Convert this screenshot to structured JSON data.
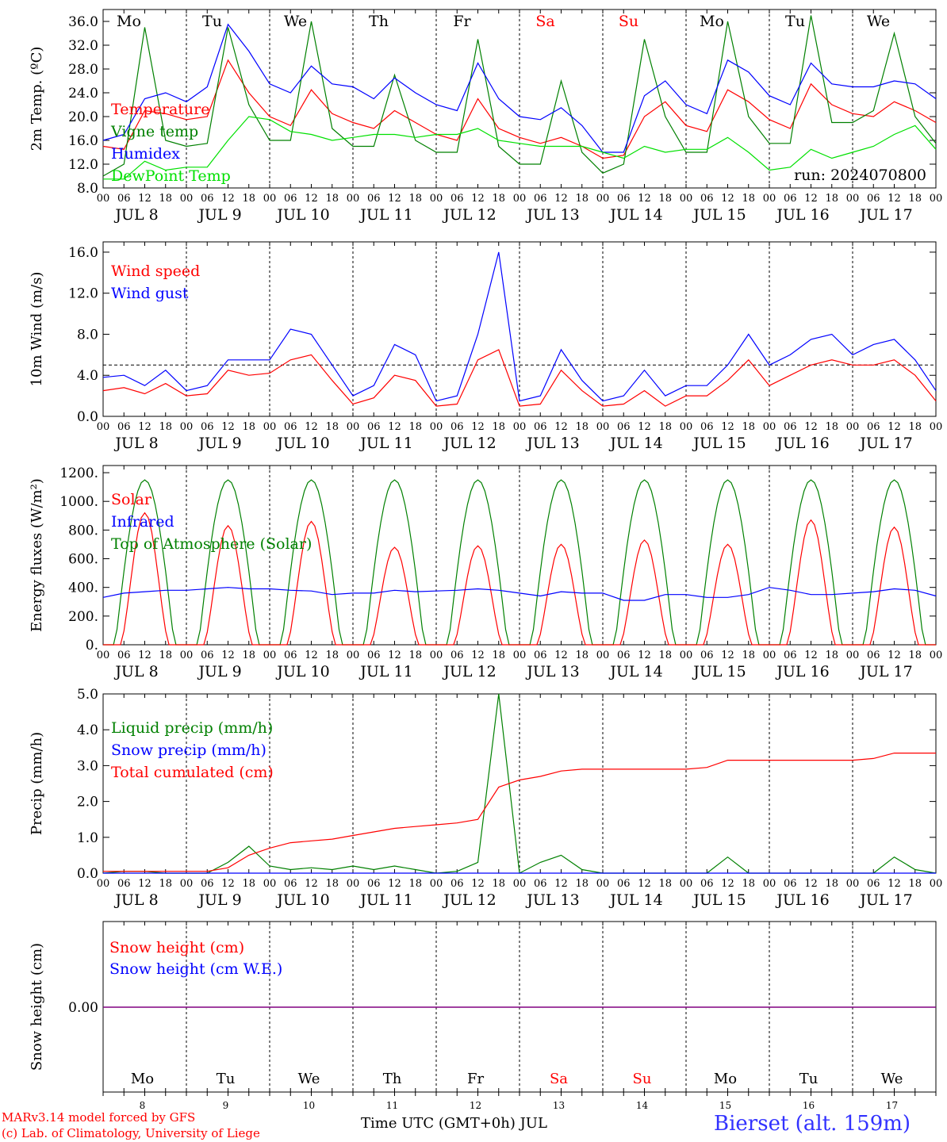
{
  "chart_data": [
    {
      "id": "temp",
      "type": "line",
      "ylabel": "2m Temp. (ºC)",
      "ylim": [
        8,
        38
      ],
      "yticks": [
        "8.0",
        "12.0",
        "16.0",
        "20.0",
        "24.0",
        "28.0",
        "32.0",
        "36.0"
      ],
      "ytick_values": [
        8,
        12,
        16,
        20,
        24,
        28,
        32,
        36
      ],
      "weekday_labels": [
        "Mo",
        "Tu",
        "We",
        "Th",
        "Fr",
        "Sa",
        "Su",
        "Mo",
        "Tu",
        "We"
      ],
      "weekend_color": "#ff0000",
      "run_label": "run: 2024070800",
      "x": [
        0,
        6,
        12,
        18,
        24,
        30,
        36,
        42,
        48,
        54,
        60,
        66,
        72,
        78,
        84,
        90,
        96,
        102,
        108,
        114,
        120,
        126,
        132,
        138,
        144,
        150,
        156,
        162,
        168,
        174,
        180,
        186,
        192,
        198,
        204,
        210,
        216,
        222,
        228,
        234,
        240
      ],
      "series": [
        {
          "name": "Temperature",
          "color": "#ff0000",
          "values": [
            15.0,
            14.5,
            21.0,
            20.5,
            19.5,
            20.0,
            29.5,
            24.0,
            20.0,
            18.5,
            24.5,
            20.5,
            19.0,
            18.0,
            21.0,
            19.0,
            17.0,
            16.0,
            23.0,
            18.0,
            16.5,
            15.5,
            16.5,
            15.0,
            13.0,
            13.5,
            20.0,
            22.5,
            18.5,
            17.5,
            24.5,
            22.5,
            19.5,
            18.0,
            25.5,
            22.0,
            20.5,
            20.0,
            22.5,
            21.0,
            19.0
          ]
        },
        {
          "name": "Vigne temp",
          "color": "#008000",
          "values": [
            10.0,
            12.0,
            35.0,
            16.0,
            15.0,
            15.5,
            35.0,
            22.0,
            16.0,
            16.0,
            36.0,
            18.0,
            15.0,
            15.0,
            27.0,
            16.0,
            14.0,
            14.0,
            33.0,
            15.0,
            12.0,
            12.0,
            26.0,
            14.0,
            10.5,
            12.0,
            33.0,
            20.0,
            14.0,
            14.0,
            36.0,
            20.0,
            15.5,
            15.5,
            37.0,
            19.0,
            19.0,
            21.0,
            34.0,
            20.0,
            15.5
          ]
        },
        {
          "name": "Humidex",
          "color": "#0000ff",
          "values": [
            16.0,
            17.0,
            23.0,
            24.0,
            22.5,
            25.0,
            35.5,
            31.0,
            25.5,
            24.0,
            28.5,
            25.5,
            25.0,
            23.0,
            26.5,
            24.0,
            22.0,
            21.0,
            29.0,
            23.0,
            20.0,
            19.5,
            21.5,
            18.5,
            14.0,
            14.0,
            23.5,
            26.0,
            22.0,
            20.5,
            29.5,
            27.5,
            23.5,
            22.0,
            29.0,
            25.5,
            25.0,
            25.0,
            26.0,
            25.5,
            23.0
          ]
        },
        {
          "name": "DewPoint Temp",
          "color": "#00e000",
          "values": [
            9.5,
            9.5,
            12.5,
            11.0,
            11.5,
            11.5,
            16.0,
            20.0,
            19.5,
            17.5,
            17.0,
            16.0,
            16.5,
            17.0,
            17.0,
            16.5,
            17.0,
            17.0,
            18.0,
            16.0,
            15.5,
            15.0,
            15.0,
            15.0,
            14.0,
            13.0,
            15.0,
            14.0,
            14.5,
            14.5,
            16.5,
            14.0,
            11.0,
            11.5,
            14.5,
            13.0,
            14.0,
            15.0,
            17.0,
            18.5,
            14.5
          ]
        }
      ]
    },
    {
      "id": "wind",
      "type": "line",
      "ylabel": "10m Wind (m/s)",
      "ylim": [
        0,
        17
      ],
      "yticks": [
        "0.0",
        "4.0",
        "8.0",
        "12.0",
        "16.0"
      ],
      "ytick_values": [
        0,
        4,
        8,
        12,
        16
      ],
      "reference_line": 5,
      "x": [
        0,
        6,
        12,
        18,
        24,
        30,
        36,
        42,
        48,
        54,
        60,
        66,
        72,
        78,
        84,
        90,
        96,
        102,
        108,
        114,
        120,
        126,
        132,
        138,
        144,
        150,
        156,
        162,
        168,
        174,
        180,
        186,
        192,
        198,
        204,
        210,
        216,
        222,
        228,
        234,
        240
      ],
      "series": [
        {
          "name": "Wind speed",
          "color": "#ff0000",
          "values": [
            2.5,
            2.8,
            2.2,
            3.2,
            2.0,
            2.2,
            4.5,
            4.0,
            4.2,
            5.5,
            6.0,
            3.5,
            1.2,
            1.8,
            4.0,
            3.5,
            1.0,
            1.2,
            5.5,
            6.5,
            1.0,
            1.2,
            4.5,
            2.5,
            1.0,
            1.2,
            2.5,
            1.0,
            2.0,
            2.0,
            3.5,
            5.5,
            3.0,
            4.0,
            5.0,
            5.5,
            5.0,
            5.0,
            5.5,
            4.0,
            1.5
          ]
        },
        {
          "name": "Wind gust",
          "color": "#0000ff",
          "values": [
            3.8,
            4.0,
            3.0,
            4.5,
            2.5,
            3.0,
            5.5,
            5.5,
            5.5,
            8.5,
            8.0,
            5.0,
            2.0,
            3.0,
            7.0,
            6.0,
            1.5,
            2.0,
            8.0,
            16.0,
            1.5,
            2.0,
            6.5,
            3.5,
            1.5,
            2.0,
            4.5,
            2.0,
            3.0,
            3.0,
            5.0,
            8.0,
            5.0,
            6.0,
            7.5,
            8.0,
            6.0,
            7.0,
            7.5,
            5.5,
            2.5
          ]
        }
      ]
    },
    {
      "id": "energy",
      "type": "line",
      "ylabel": "Energy fluxes (W/m²)",
      "ylim": [
        0,
        1250
      ],
      "yticks": [
        "0.",
        "200.",
        "400.",
        "600.",
        "800.",
        "1000.",
        "1200."
      ],
      "ytick_values": [
        0,
        200,
        400,
        600,
        800,
        1000,
        1200
      ],
      "solar_peaks": [
        920,
        830,
        860,
        680,
        690,
        700,
        730,
        700,
        870,
        820
      ],
      "toa_peak": 1150,
      "infrared_values": [
        330,
        360,
        370,
        380,
        380,
        390,
        400,
        390,
        390,
        380,
        375,
        350,
        360,
        360,
        380,
        370,
        375,
        380,
        390,
        380,
        360,
        340,
        370,
        360,
        360,
        310,
        310,
        350,
        350,
        330,
        330,
        350,
        400,
        380,
        350,
        350,
        360,
        370,
        390,
        380,
        340
      ],
      "series": [
        {
          "name": "Solar",
          "color": "#ff0000"
        },
        {
          "name": "Infrared",
          "color": "#0000ff"
        },
        {
          "name": "Top of Atmosphere (Solar)",
          "color": "#008000"
        }
      ]
    },
    {
      "id": "precip",
      "type": "line",
      "ylabel": "Precip (mm/h)",
      "ylim": [
        0,
        5
      ],
      "yticks": [
        "0.0",
        "1.0",
        "2.0",
        "3.0",
        "4.0",
        "5.0"
      ],
      "ytick_values": [
        0,
        1,
        2,
        3,
        4,
        5
      ],
      "x": [
        0,
        6,
        12,
        18,
        24,
        30,
        36,
        42,
        48,
        54,
        60,
        66,
        72,
        78,
        84,
        90,
        96,
        102,
        108,
        114,
        120,
        126,
        132,
        138,
        144,
        150,
        156,
        162,
        168,
        174,
        180,
        186,
        192,
        198,
        204,
        210,
        216,
        222,
        228,
        234,
        240
      ],
      "series": [
        {
          "name": "Liquid precip (mm/h)",
          "color": "#008000",
          "values": [
            0.0,
            0.05,
            0.05,
            0.0,
            0.0,
            0.0,
            0.3,
            0.75,
            0.2,
            0.1,
            0.15,
            0.1,
            0.2,
            0.1,
            0.2,
            0.1,
            0.0,
            0.05,
            0.3,
            5.0,
            0.0,
            0.3,
            0.5,
            0.1,
            0.0,
            0.0,
            0.0,
            0.0,
            0.0,
            0.0,
            0.45,
            0.0,
            0.0,
            0.0,
            0.0,
            0.0,
            0.0,
            0.0,
            0.45,
            0.1,
            0.0
          ]
        },
        {
          "name": "Snow precip (mm/h)",
          "color": "#0000ff",
          "values": [
            0,
            0,
            0,
            0,
            0,
            0,
            0,
            0,
            0,
            0,
            0,
            0,
            0,
            0,
            0,
            0,
            0,
            0,
            0,
            0,
            0,
            0,
            0,
            0,
            0,
            0,
            0,
            0,
            0,
            0,
            0,
            0,
            0,
            0,
            0,
            0,
            0,
            0,
            0,
            0,
            0
          ]
        },
        {
          "name": "Total cumulated (cm)",
          "color": "#ff0000",
          "values": [
            0.05,
            0.05,
            0.05,
            0.05,
            0.05,
            0.05,
            0.15,
            0.5,
            0.7,
            0.85,
            0.9,
            0.95,
            1.05,
            1.15,
            1.25,
            1.3,
            1.35,
            1.4,
            1.5,
            2.4,
            2.6,
            2.7,
            2.85,
            2.9,
            2.9,
            2.9,
            2.9,
            2.9,
            2.9,
            2.95,
            3.15,
            3.15,
            3.15,
            3.15,
            3.15,
            3.15,
            3.15,
            3.2,
            3.35,
            3.35,
            3.35
          ]
        }
      ]
    },
    {
      "id": "snow",
      "type": "line",
      "ylabel": "Snow height (cm)",
      "yticks": [
        "0.00"
      ],
      "series": [
        {
          "name": "Snow height (cm)",
          "color": "#ff0000"
        },
        {
          "name": "Snow height (cm W.E.)",
          "color": "#0000ff"
        }
      ]
    }
  ],
  "x_axis": {
    "hour_ticks": [
      "00",
      "06",
      "12",
      "18"
    ],
    "final_tick": "00",
    "date_month": "JUL",
    "dates": [
      "8",
      "9",
      "10",
      "11",
      "12",
      "13",
      "14",
      "15",
      "16",
      "17"
    ],
    "bottom_days": [
      "Mo",
      "Tu",
      "We",
      "Th",
      "Fr",
      "Sa",
      "Su",
      "Mo",
      "Tu",
      "We"
    ],
    "bottom_dates": [
      "8",
      "9",
      "10",
      "11",
      "12",
      "13",
      "14",
      "15",
      "16",
      "17"
    ],
    "weekend_indices": [
      5,
      6
    ]
  },
  "footer": {
    "model_line1": "MARv3.14 model forced by GFS",
    "model_line2": "(c) Lab. of Climatology, University of Liege",
    "axis_title": "Time UTC (GMT+0h) JUL",
    "station": "Bierset (alt. 159m)"
  }
}
